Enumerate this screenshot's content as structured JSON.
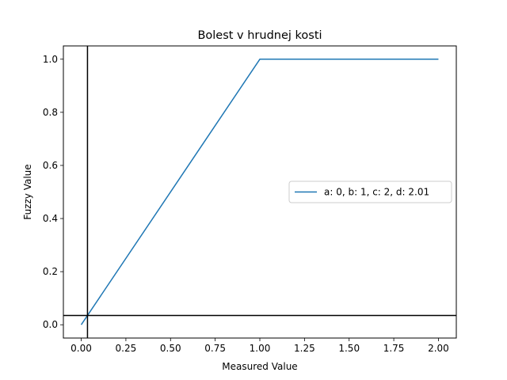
{
  "chart_data": {
    "type": "line",
    "title": "Bolest v hrudnej kosti",
    "xlabel": "Measured Value",
    "ylabel": "Fuzzy Value",
    "xlim": [
      -0.1,
      2.1
    ],
    "ylim": [
      -0.05,
      1.05
    ],
    "xticks": [
      0.0,
      0.25,
      0.5,
      0.75,
      1.0,
      1.25,
      1.5,
      1.75,
      2.0
    ],
    "xtick_labels": [
      "0.00",
      "0.25",
      "0.50",
      "0.75",
      "1.00",
      "1.25",
      "1.50",
      "1.75",
      "2.00"
    ],
    "yticks": [
      0.0,
      0.2,
      0.4,
      0.6,
      0.8,
      1.0
    ],
    "ytick_labels": [
      "0.0",
      "0.2",
      "0.4",
      "0.6",
      "0.8",
      "1.0"
    ],
    "grid": false,
    "legend_position": "center-right",
    "series": [
      {
        "name": "a: 0, b: 1, c: 2, d: 2.01",
        "color": "#1f77b4",
        "x": [
          0,
          1,
          2
        ],
        "y": [
          0,
          1,
          1
        ]
      }
    ],
    "reference_lines": {
      "vertical_x": 0.035,
      "horizontal_y": 0.035,
      "color": "#000000"
    }
  }
}
